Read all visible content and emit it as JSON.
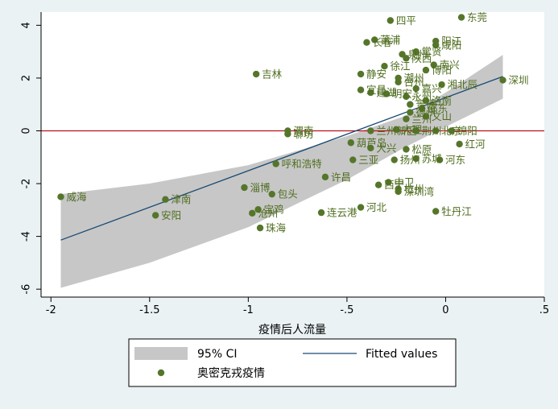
{
  "chart_data": {
    "type": "scatter",
    "xlabel": "疫情后人流量",
    "ylabel": "",
    "xlim": [
      -2.05,
      0.5
    ],
    "ylim": [
      -6.3,
      4.5
    ],
    "x_ticks": [
      -2,
      -1.5,
      -1,
      -0.5,
      0,
      0.5
    ],
    "x_tick_labels": [
      "-2",
      "-1.5",
      "-1",
      "-.5",
      "0",
      ".5"
    ],
    "y_ticks": [
      -6,
      -4,
      -2,
      0,
      2,
      4
    ],
    "y_tick_labels": [
      "-6",
      "-4",
      "-2",
      "0",
      "2",
      "4"
    ],
    "grid": false,
    "reference_line": {
      "y": 0,
      "color": "#c0101a"
    },
    "fit_line": {
      "x": [
        -1.95,
        0.29
      ],
      "y": [
        -4.14,
        2.06
      ]
    },
    "ci_band": {
      "x": [
        -1.95,
        -1.5,
        -1.0,
        -0.5,
        -0.2,
        0.0,
        0.29
      ],
      "lower": [
        -5.95,
        -5.0,
        -3.65,
        -1.85,
        -0.6,
        0.15,
        1.22
      ],
      "upper": [
        -2.4,
        -2.0,
        -1.3,
        -0.2,
        0.58,
        1.45,
        2.88
      ]
    },
    "legend": {
      "placement": "bottom",
      "entries": [
        "95% CI",
        "Fitted values",
        "奥密克戎疫情"
      ]
    },
    "colors": {
      "point": "#55762a",
      "label": "#4f6d1f",
      "fit": "#1a4a73",
      "band": "#c7c7c7",
      "ref": "#c0101a"
    },
    "points": [
      {
        "name": "东莞",
        "x": 0.08,
        "y": 4.3
      },
      {
        "name": "四平",
        "x": -0.28,
        "y": 4.18
      },
      {
        "name": "莆浦",
        "x": -0.36,
        "y": 3.45
      },
      {
        "name": "长春",
        "x": -0.4,
        "y": 3.35
      },
      {
        "name": "阳江",
        "x": -0.05,
        "y": 3.4
      },
      {
        "name": "咸阳",
        "x": -0.05,
        "y": 3.25
      },
      {
        "name": "泉州",
        "x": -0.22,
        "y": 2.9
      },
      {
        "name": "常贤",
        "x": -0.15,
        "y": 3.0
      },
      {
        "name": "陕西",
        "x": -0.2,
        "y": 2.75
      },
      {
        "name": "南兴",
        "x": -0.06,
        "y": 2.5
      },
      {
        "name": "徐江",
        "x": -0.31,
        "y": 2.45
      },
      {
        "name": "博阳",
        "x": -0.1,
        "y": 2.3
      },
      {
        "name": "吉林",
        "x": -0.96,
        "y": 2.15
      },
      {
        "name": "静安",
        "x": -0.43,
        "y": 2.15
      },
      {
        "name": "潮州",
        "x": -0.24,
        "y": 2.0
      },
      {
        "name": "台州",
        "x": -0.24,
        "y": 1.85
      },
      {
        "name": "嘉兴",
        "x": -0.15,
        "y": 1.6
      },
      {
        "name": "湘北辰",
        "x": -0.02,
        "y": 1.75
      },
      {
        "name": "宜昌",
        "x": -0.43,
        "y": 1.55
      },
      {
        "name": "建湖",
        "x": -0.38,
        "y": 1.45
      },
      {
        "name": "明宏",
        "x": -0.3,
        "y": 1.4
      },
      {
        "name": "永州",
        "x": -0.2,
        "y": 1.3
      },
      {
        "name": "洛南",
        "x": -0.1,
        "y": 1.15
      },
      {
        "name": "深圳",
        "x": 0.29,
        "y": 1.92
      },
      {
        "name": "景德",
        "x": -0.18,
        "y": 1.0
      },
      {
        "name": "邵东",
        "x": -0.12,
        "y": 0.85
      },
      {
        "name": "德州",
        "x": -0.18,
        "y": 0.7
      },
      {
        "name": "文山",
        "x": -0.1,
        "y": 0.55
      },
      {
        "name": "兰州",
        "x": -0.2,
        "y": 0.45
      },
      {
        "name": "渭南",
        "x": -0.8,
        "y": 0.0
      },
      {
        "name": "聊坊",
        "x": -0.8,
        "y": -0.12
      },
      {
        "name": "兰州新区",
        "x": -0.38,
        "y": 0.0
      },
      {
        "name": "大理",
        "x": -0.25,
        "y": 0.05
      },
      {
        "name": "荆州",
        "x": -0.15,
        "y": 0.0
      },
      {
        "name": "北京",
        "x": -0.05,
        "y": 0.0
      },
      {
        "name": "绵阳",
        "x": 0.03,
        "y": 0.0
      },
      {
        "name": "葫芦岛",
        "x": -0.48,
        "y": -0.45
      },
      {
        "name": "红河",
        "x": 0.07,
        "y": -0.5
      },
      {
        "name": "大兴",
        "x": -0.38,
        "y": -0.65
      },
      {
        "name": "松原",
        "x": -0.2,
        "y": -0.7
      },
      {
        "name": "三亚",
        "x": -0.47,
        "y": -1.1
      },
      {
        "name": "扬州",
        "x": -0.26,
        "y": -1.1
      },
      {
        "name": "苏城",
        "x": -0.15,
        "y": -1.05
      },
      {
        "name": "河东",
        "x": -0.03,
        "y": -1.1
      },
      {
        "name": "呼和浩特",
        "x": -0.86,
        "y": -1.25
      },
      {
        "name": "许昌",
        "x": -0.61,
        "y": -1.75
      },
      {
        "name": "中卫",
        "x": -0.29,
        "y": -1.95
      },
      {
        "name": "西宁",
        "x": -0.34,
        "y": -2.05
      },
      {
        "name": "杭州",
        "x": -0.24,
        "y": -2.2
      },
      {
        "name": "深圳湾",
        "x": -0.24,
        "y": -2.3
      },
      {
        "name": "淄博",
        "x": -1.02,
        "y": -2.15
      },
      {
        "name": "包头",
        "x": -0.88,
        "y": -2.4
      },
      {
        "name": "河北",
        "x": -0.43,
        "y": -2.9
      },
      {
        "name": "牡丹江",
        "x": -0.05,
        "y": -3.05
      },
      {
        "name": "连云港",
        "x": -0.63,
        "y": -3.1
      },
      {
        "name": "宝鸡",
        "x": -0.95,
        "y": -2.98
      },
      {
        "name": "沧州",
        "x": -0.98,
        "y": -3.12
      },
      {
        "name": "珠海",
        "x": -0.94,
        "y": -3.68
      },
      {
        "name": "威海",
        "x": -1.95,
        "y": -2.5
      },
      {
        "name": "津南",
        "x": -1.42,
        "y": -2.6
      },
      {
        "name": "安阳",
        "x": -1.47,
        "y": -3.2
      }
    ]
  }
}
